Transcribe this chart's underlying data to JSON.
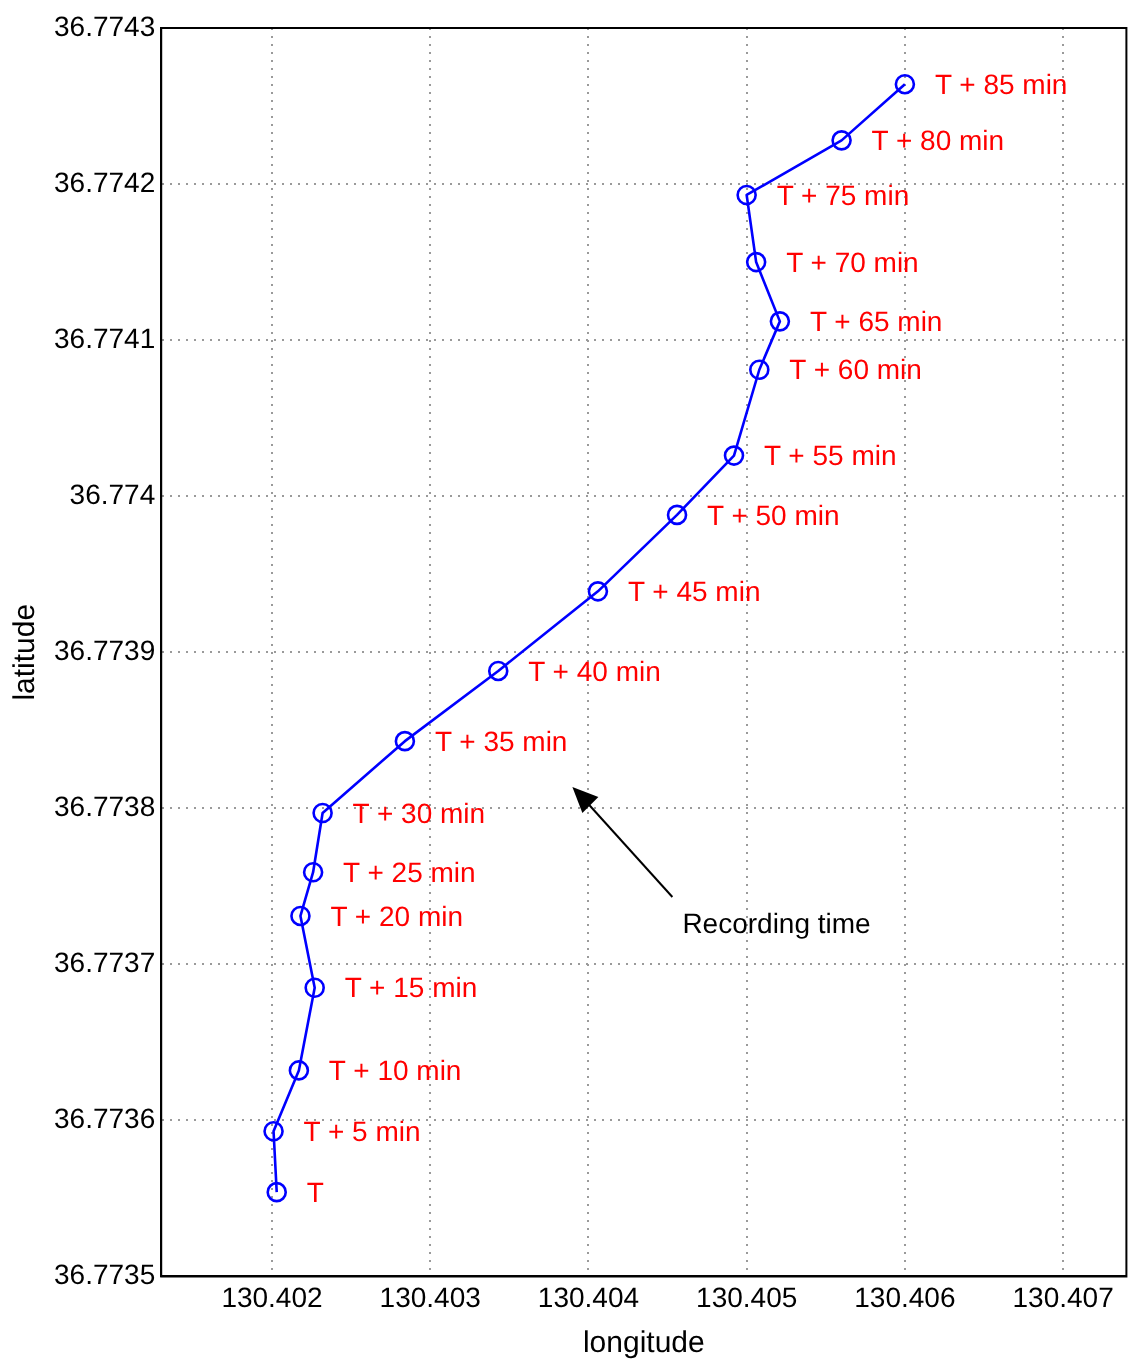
{
  "chart_data": {
    "type": "line",
    "xlabel": "longitude",
    "ylabel": "latitude",
    "x": [
      130.40203,
      130.40201,
      130.40217,
      130.40227,
      130.40218,
      130.40226,
      130.40232,
      130.40284,
      130.40343,
      130.40406,
      130.40456,
      130.40492,
      130.40508,
      130.40521,
      130.40506,
      130.405,
      130.4056,
      130.406
    ],
    "series": [
      {
        "color": "#0000ff",
        "values": [
          36.773554,
          36.773593,
          36.773632,
          36.773685,
          36.773731,
          36.773759,
          36.773797,
          36.773843,
          36.773888,
          36.773939,
          36.773988,
          36.774026,
          36.774081,
          36.774112,
          36.77415,
          36.774193,
          36.774228,
          36.774264
        ]
      }
    ],
    "marker": "circle",
    "line_style": "solid",
    "grid": true,
    "legend": false,
    "xlim": [
      130.4013,
      130.4074
    ],
    "xticks": [
      130.402,
      130.403,
      130.404,
      130.405,
      130.406,
      130.407
    ],
    "ylim": [
      36.7735,
      36.7743
    ],
    "yticks": [
      36.7735,
      36.7736,
      36.7737,
      36.7738,
      36.7739,
      36.774,
      36.7741,
      36.7742,
      36.7743
    ],
    "annotations": [
      {
        "text": "T",
        "x": 130.40203,
        "y": 36.773554
      },
      {
        "text": "T + 5 min",
        "x": 130.40201,
        "y": 36.773593
      },
      {
        "text": "T + 10 min",
        "x": 130.40217,
        "y": 36.773632
      },
      {
        "text": "T + 15 min",
        "x": 130.40227,
        "y": 36.773685
      },
      {
        "text": "T + 20 min",
        "x": 130.40218,
        "y": 36.773731
      },
      {
        "text": "T + 25 min",
        "x": 130.40226,
        "y": 36.773759
      },
      {
        "text": "T + 30 min",
        "x": 130.40232,
        "y": 36.773797
      },
      {
        "text": "T + 35 min",
        "x": 130.40284,
        "y": 36.773843
      },
      {
        "text": "T + 40 min",
        "x": 130.40343,
        "y": 36.773888
      },
      {
        "text": "T + 45 min",
        "x": 130.40406,
        "y": 36.773939
      },
      {
        "text": "T + 50 min",
        "x": 130.40456,
        "y": 36.773988
      },
      {
        "text": "T + 55 min",
        "x": 130.40492,
        "y": 36.774026
      },
      {
        "text": "T + 60 min",
        "x": 130.40508,
        "y": 36.774081
      },
      {
        "text": "T + 65 min",
        "x": 130.40521,
        "y": 36.774112
      },
      {
        "text": "T + 70 min",
        "x": 130.40506,
        "y": 36.77415
      },
      {
        "text": "T + 75 min",
        "x": 130.405,
        "y": 36.774193
      },
      {
        "text": "T + 80 min",
        "x": 130.4056,
        "y": 36.774228
      },
      {
        "text": "T + 85 min",
        "x": 130.406,
        "y": 36.774264
      },
      "Recording time"
    ]
  }
}
